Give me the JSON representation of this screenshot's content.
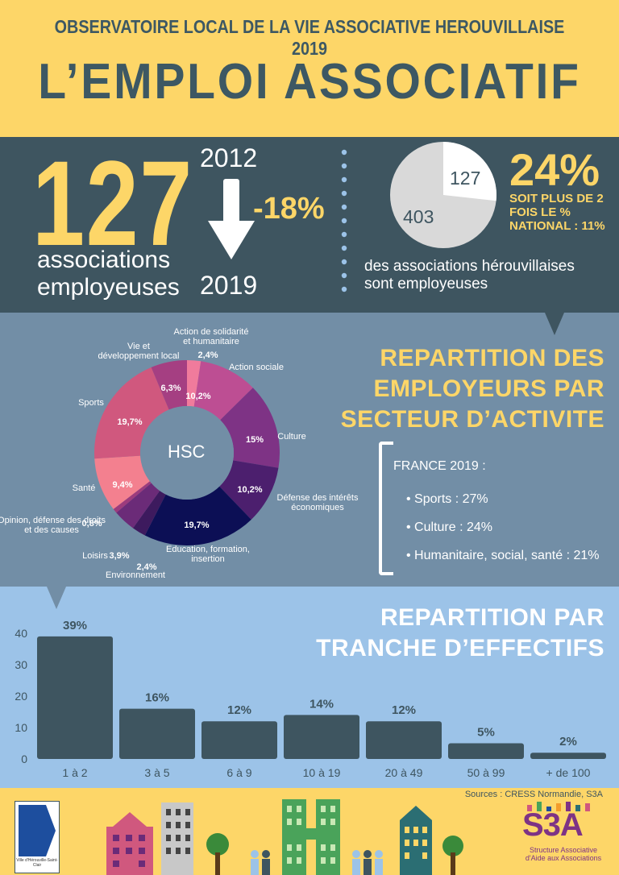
{
  "header": {
    "subtitle": "OBSERVATOIRE LOCAL DE LA VIE ASSOCIATIVE HEROUVILLAISE 2019",
    "title": "L’EMPLOI ASSOCIATIF"
  },
  "stats": {
    "big_number": "127",
    "big_label_line1": "associations",
    "big_label_line2": "employeuses",
    "year_start": "2012",
    "year_end": "2019",
    "change": "-18%",
    "pie_small": "127",
    "pie_large": "403",
    "percent": "24%",
    "percent_note_line1": "SOIT PLUS DE 2",
    "percent_note_line2": "FOIS LE %",
    "percent_note_line3": "NATIONAL : 11%",
    "caption_line1": "des associations hérouvillaises",
    "caption_line2": "sont employeuses",
    "colors": {
      "dark": "#3e5560",
      "yellow": "#fdd668",
      "pie_grey": "#d9d9d9"
    }
  },
  "sectors": {
    "title_line1": "Repartition des",
    "title_line2": "employeurs par",
    "title_line3": "secteur d’activite",
    "center_label": "HSC",
    "france_title": "FRANCE 2019 :",
    "france_items": [
      "Sports : 27%",
      "Culture : 24%",
      "Humanitaire, social, santé : 21%"
    ],
    "slices": [
      {
        "name": "Action de solidarité et humanitaire",
        "label_line1": "Action de solidarité",
        "label_line2": "et humanitaire",
        "pct": "2,4%",
        "value": 2.4,
        "color": "#f07b9c"
      },
      {
        "name": "Action sociale",
        "label_line1": "Action sociale",
        "label_line2": "",
        "pct": "10,2%",
        "value": 10.2,
        "color": "#bd4e93"
      },
      {
        "name": "Culture",
        "label_line1": "Culture",
        "label_line2": "",
        "pct": "15%",
        "value": 15,
        "color": "#7e3385"
      },
      {
        "name": "Défense des intérêts économiques",
        "label_line1": "Défense des intérêts",
        "label_line2": "économiques",
        "pct": "10,2%",
        "value": 10.2,
        "color": "#4c1f6e"
      },
      {
        "name": "Education, formation, insertion",
        "label_line1": "Education, formation,",
        "label_line2": "insertion",
        "pct": "19,7%",
        "value": 19.7,
        "color": "#0c0f55"
      },
      {
        "name": "Environnement",
        "label_line1": "Environnement",
        "label_line2": "",
        "pct": "2,4%",
        "value": 2.4,
        "color": "#3d1a5e"
      },
      {
        "name": "Loisirs",
        "label_line1": "Loisirs",
        "label_line2": "",
        "pct": "3,9%",
        "value": 3.9,
        "color": "#6b2b78"
      },
      {
        "name": "Opinion, défense des droits et des causes",
        "label_line1": "Opinion, défense des droits",
        "label_line2": "et des causes",
        "pct": "0,8%",
        "value": 0.8,
        "color": "#9c3b7d"
      },
      {
        "name": "Santé",
        "label_line1": "Santé",
        "label_line2": "",
        "pct": "9,4%",
        "value": 9.4,
        "color": "#f3808f"
      },
      {
        "name": "Sports",
        "label_line1": "Sports",
        "label_line2": "",
        "pct": "19,7%",
        "value": 19.7,
        "color": "#d0587e"
      },
      {
        "name": "Vie et développement local",
        "label_line1": "Vie et",
        "label_line2": "développement local",
        "pct": "6,3%",
        "value": 6.3,
        "color": "#a53f82"
      }
    ]
  },
  "tranches": {
    "title_line1": "Repartition par",
    "title_line2": "tranche d’effectifs",
    "source": "Sources : CRESS Normandie, S3A"
  },
  "footer": {
    "city_label": "Ville d'Hérouville-Saint-Clair",
    "s3a_logo": "S3A",
    "s3a_name_line1": "Structure Associative",
    "s3a_name_line2": "d'Aide aux Associations"
  },
  "chart_data": {
    "type": "bar",
    "categories": [
      "1 à 2",
      "3 à 5",
      "6 à 9",
      "10 à 19",
      "20 à 49",
      "50 à 99",
      "+ de 100"
    ],
    "values": [
      39,
      16,
      12,
      14,
      12,
      5,
      2
    ],
    "data_labels": [
      "39%",
      "16%",
      "12%",
      "14%",
      "12%",
      "5%",
      "2%"
    ],
    "y_ticks": [
      "0",
      "10",
      "20",
      "30",
      "40"
    ],
    "ylim": [
      0,
      40
    ],
    "bar_color": "#3e5560",
    "grid": false
  }
}
